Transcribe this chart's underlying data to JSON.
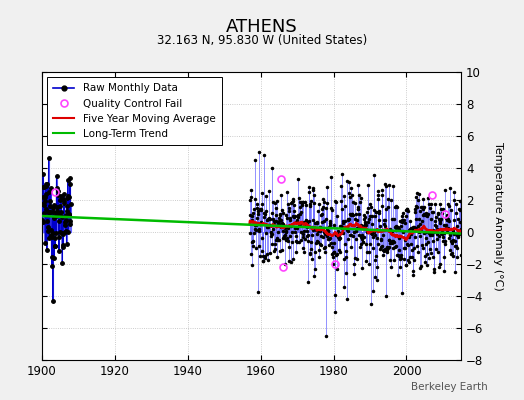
{
  "title": "ATHENS",
  "subtitle": "32.163 N, 95.830 W (United States)",
  "ylabel": "Temperature Anomaly (°C)",
  "credit": "Berkeley Earth",
  "xlim": [
    1900,
    2015
  ],
  "ylim": [
    -8,
    10
  ],
  "yticks": [
    -8,
    -6,
    -4,
    -2,
    0,
    2,
    4,
    6,
    8,
    10
  ],
  "xticks": [
    1900,
    1920,
    1940,
    1960,
    1980,
    2000
  ],
  "bg_color": "#f0f0f0",
  "plot_bg": "#ffffff",
  "raw_color": "#0000cc",
  "raw_stem_color": "#6666ff",
  "ma_color": "#dd0000",
  "trend_color": "#00bb00",
  "qc_color": "#ff44ff",
  "seed": 12345,
  "start_year": 1900,
  "end_year": 2014,
  "sparse_end": 1908,
  "dense_start": 1957
}
